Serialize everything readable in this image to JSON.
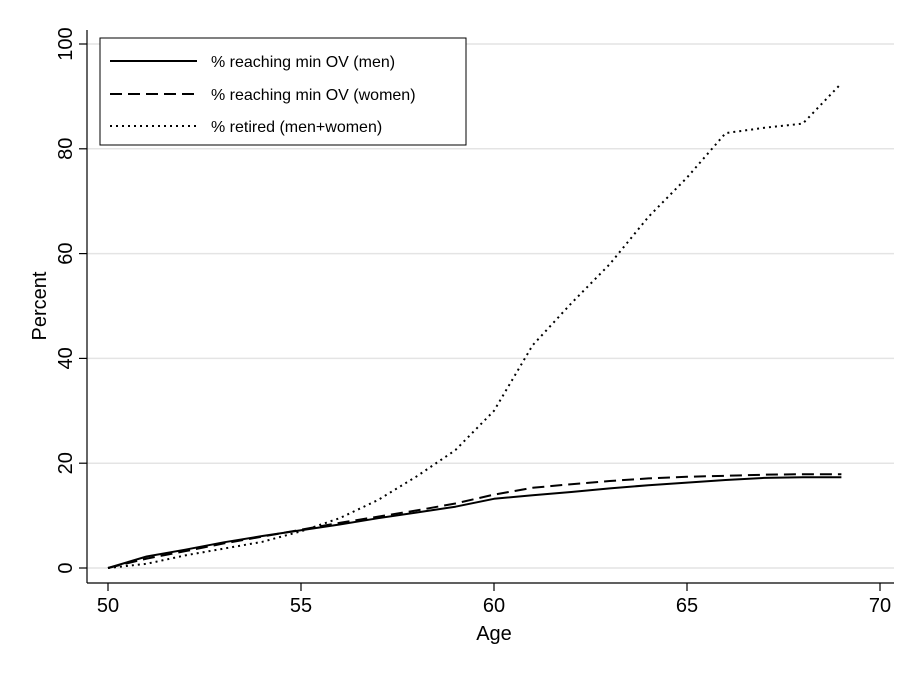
{
  "chart_data": {
    "type": "line",
    "xlabel": "Age",
    "ylabel": "Percent",
    "xlim": [
      50,
      70
    ],
    "ylim": [
      0,
      100
    ],
    "x_ticks": [
      50,
      55,
      60,
      65,
      70
    ],
    "y_ticks": [
      0,
      20,
      40,
      60,
      80,
      100
    ],
    "grid": "horizontal",
    "legend_position": "top-left",
    "series": [
      {
        "name": "% reaching min OV (men)",
        "style": "solid",
        "x": [
          50,
          51,
          52,
          53,
          54,
          55,
          56,
          57,
          58,
          59,
          60,
          61,
          62,
          63,
          64,
          65,
          66,
          67,
          68,
          69
        ],
        "y": [
          0,
          2.2,
          3.5,
          4.9,
          6.1,
          7.2,
          8.3,
          9.5,
          10.6,
          11.7,
          13.2,
          13.9,
          14.5,
          15.2,
          15.8,
          16.3,
          16.8,
          17.2,
          17.3,
          17.3
        ]
      },
      {
        "name": "% reaching min OV (women)",
        "style": "dashed",
        "x": [
          50,
          51,
          52,
          53,
          54,
          55,
          56,
          57,
          58,
          59,
          60,
          61,
          62,
          63,
          64,
          65,
          66,
          67,
          68,
          69
        ],
        "y": [
          0,
          1.8,
          3.2,
          4.7,
          6.0,
          7.3,
          8.6,
          9.8,
          11.0,
          12.3,
          14.0,
          15.3,
          16.0,
          16.6,
          17.1,
          17.4,
          17.6,
          17.8,
          17.9,
          17.9
        ]
      },
      {
        "name": "% retired (men+women)",
        "style": "dotted",
        "x": [
          50,
          51,
          52,
          53,
          54,
          55,
          56,
          57,
          58,
          59,
          60,
          61,
          62,
          63,
          64,
          65,
          66,
          67,
          68,
          69
        ],
        "y": [
          0,
          0.8,
          2.4,
          3.7,
          5.0,
          7.0,
          9.5,
          13.0,
          17.5,
          22.5,
          30.0,
          42.5,
          50.5,
          58.0,
          67.0,
          74.5,
          83.0,
          84.0,
          84.8,
          92.5
        ]
      }
    ]
  }
}
